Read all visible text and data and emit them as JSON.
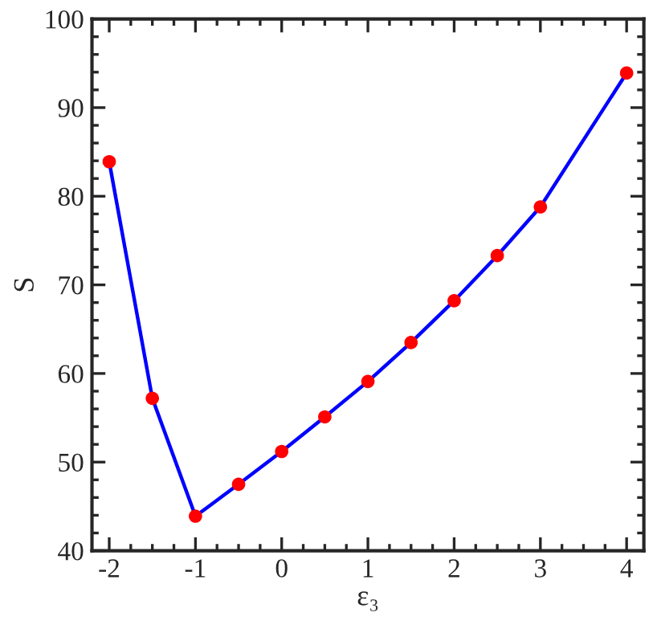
{
  "chart_data": {
    "type": "line",
    "xlabel": "ε₃",
    "ylabel": "S",
    "x": [
      -2,
      -1.5,
      -1,
      -0.5,
      0,
      0.5,
      1,
      1.5,
      2,
      2.5,
      3,
      4
    ],
    "series": [
      {
        "color": "#0000ff",
        "colors": [
          "#ff0000",
          "#ff0000",
          "#ff0000",
          "#ff0000",
          "#ff0000",
          "#ff0000",
          "#ff0000",
          "#ff0000",
          "#ff0000",
          "#ff0000",
          "#ff0000",
          "#ff0000"
        ],
        "values": [
          83.9,
          57.2,
          43.9,
          47.5,
          51.2,
          55.1,
          59.1,
          63.5,
          68.2,
          73.3,
          78.8,
          93.9
        ]
      }
    ],
    "marker": "circle",
    "line_style": "solid",
    "grid": false,
    "xlim": [
      -2.2,
      4.2
    ],
    "ylim": [
      40,
      100
    ],
    "xticks": [
      {
        "value": -2,
        "label": "-2"
      },
      {
        "value": -1,
        "label": "-1"
      },
      0,
      1,
      2,
      3,
      4
    ],
    "yticks": [
      40,
      50,
      60,
      70,
      80,
      90,
      100
    ]
  }
}
